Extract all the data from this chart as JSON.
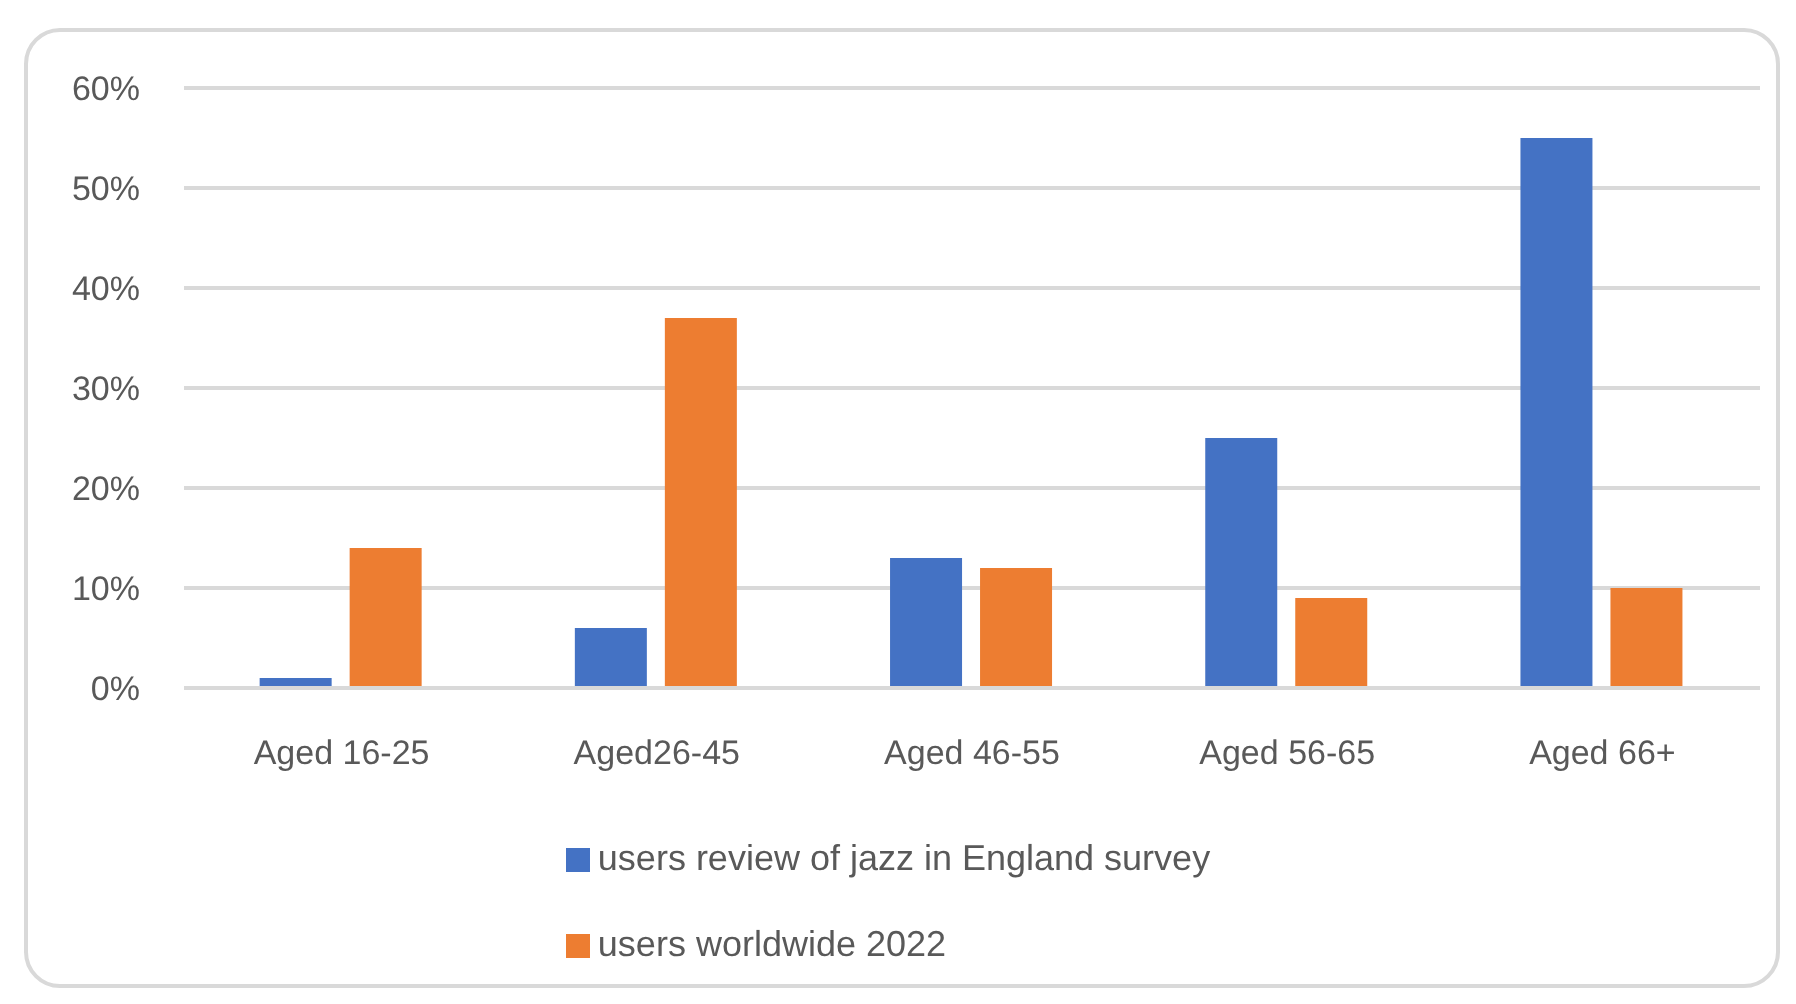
{
  "chart_data": {
    "type": "bar",
    "categories": [
      "Aged 16-25",
      "Aged26-45",
      "Aged 46-55",
      "Aged 56-65",
      "Aged 66+"
    ],
    "series": [
      {
        "name": "users review of jazz in England survey",
        "color": "#4472c4",
        "values": [
          1,
          6,
          13,
          25,
          55
        ]
      },
      {
        "name": "users worldwide 2022",
        "color": "#ed7d31",
        "values": [
          14,
          37,
          12,
          9,
          10
        ]
      }
    ],
    "ylim": [
      0,
      60
    ],
    "yticks": [
      {
        "value": 0,
        "label": "0%"
      },
      {
        "value": 10,
        "label": "10%"
      },
      {
        "value": 20,
        "label": "20%"
      },
      {
        "value": 30,
        "label": "30%"
      },
      {
        "value": 40,
        "label": "40%"
      },
      {
        "value": 50,
        "label": "50%"
      },
      {
        "value": 60,
        "label": "60%"
      }
    ],
    "grid": "y",
    "legend": "bottom"
  }
}
